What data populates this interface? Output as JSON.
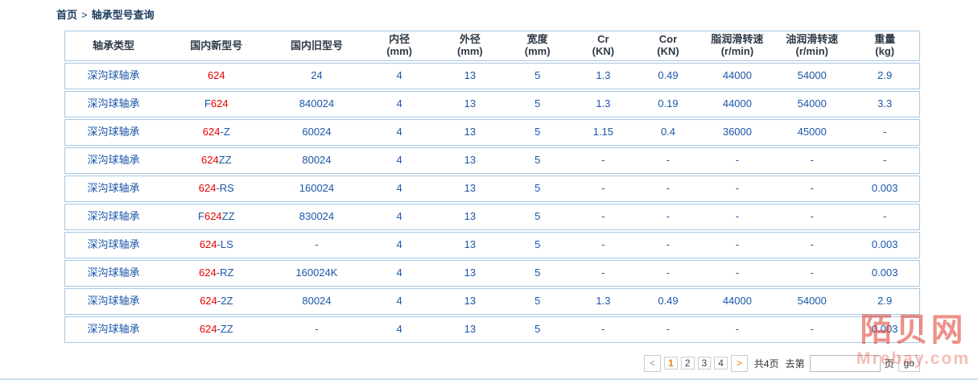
{
  "breadcrumb": {
    "home": "首页",
    "separator": ">",
    "current": "轴承型号查询"
  },
  "table": {
    "headers": [
      {
        "line1": "轴承类型",
        "line2": ""
      },
      {
        "line1": "国内新型号",
        "line2": ""
      },
      {
        "line1": "国内旧型号",
        "line2": ""
      },
      {
        "line1": "内径",
        "line2": "(mm)"
      },
      {
        "line1": "外径",
        "line2": "(mm)"
      },
      {
        "line1": "宽度",
        "line2": "(mm)"
      },
      {
        "line1": "Cr",
        "line2": "(KN)"
      },
      {
        "line1": "Cor",
        "line2": "(KN)"
      },
      {
        "line1": "脂润滑转速",
        "line2": "(r/min)"
      },
      {
        "line1": "油润滑转速",
        "line2": "(r/min)"
      },
      {
        "line1": "重量",
        "line2": "(kg)"
      }
    ],
    "rows": [
      {
        "type": "深沟球轴承",
        "model_pre": "",
        "model_hl": "624",
        "model_suf": "",
        "old_model": "24",
        "inner_mm": "4",
        "outer_mm": "13",
        "width_mm": "5",
        "cr": "1.3",
        "cor": "0.49",
        "grease_rpm": "44000",
        "oil_rpm": "54000",
        "weight": "2.9"
      },
      {
        "type": "深沟球轴承",
        "model_pre": "F",
        "model_hl": "624",
        "model_suf": "",
        "old_model": "840024",
        "inner_mm": "4",
        "outer_mm": "13",
        "width_mm": "5",
        "cr": "1.3",
        "cor": "0.19",
        "grease_rpm": "44000",
        "oil_rpm": "54000",
        "weight": "3.3"
      },
      {
        "type": "深沟球轴承",
        "model_pre": "",
        "model_hl": "624",
        "model_suf": "-Z",
        "old_model": "60024",
        "inner_mm": "4",
        "outer_mm": "13",
        "width_mm": "5",
        "cr": "1.15",
        "cor": "0.4",
        "grease_rpm": "36000",
        "oil_rpm": "45000",
        "weight": "-"
      },
      {
        "type": "深沟球轴承",
        "model_pre": "",
        "model_hl": "624",
        "model_suf": "ZZ",
        "old_model": "80024",
        "inner_mm": "4",
        "outer_mm": "13",
        "width_mm": "5",
        "cr": "-",
        "cor": "-",
        "grease_rpm": "-",
        "oil_rpm": "-",
        "weight": "-"
      },
      {
        "type": "深沟球轴承",
        "model_pre": "",
        "model_hl": "624",
        "model_suf": "-RS",
        "old_model": "160024",
        "inner_mm": "4",
        "outer_mm": "13",
        "width_mm": "5",
        "cr": "-",
        "cor": "-",
        "grease_rpm": "-",
        "oil_rpm": "-",
        "weight": "0.003"
      },
      {
        "type": "深沟球轴承",
        "model_pre": "F",
        "model_hl": "624",
        "model_suf": "ZZ",
        "old_model": "830024",
        "inner_mm": "4",
        "outer_mm": "13",
        "width_mm": "5",
        "cr": "-",
        "cor": "-",
        "grease_rpm": "-",
        "oil_rpm": "-",
        "weight": "-"
      },
      {
        "type": "深沟球轴承",
        "model_pre": "",
        "model_hl": "624",
        "model_suf": "-LS",
        "old_model": "-",
        "inner_mm": "4",
        "outer_mm": "13",
        "width_mm": "5",
        "cr": "-",
        "cor": "-",
        "grease_rpm": "-",
        "oil_rpm": "-",
        "weight": "0.003"
      },
      {
        "type": "深沟球轴承",
        "model_pre": "",
        "model_hl": "624",
        "model_suf": "-RZ",
        "old_model": "160024K",
        "inner_mm": "4",
        "outer_mm": "13",
        "width_mm": "5",
        "cr": "-",
        "cor": "-",
        "grease_rpm": "-",
        "oil_rpm": "-",
        "weight": "0.003"
      },
      {
        "type": "深沟球轴承",
        "model_pre": "",
        "model_hl": "624",
        "model_suf": "-2Z",
        "old_model": "80024",
        "inner_mm": "4",
        "outer_mm": "13",
        "width_mm": "5",
        "cr": "1.3",
        "cor": "0.49",
        "grease_rpm": "44000",
        "oil_rpm": "54000",
        "weight": "2.9"
      },
      {
        "type": "深沟球轴承",
        "model_pre": "",
        "model_hl": "624",
        "model_suf": "-ZZ",
        "old_model": "-",
        "inner_mm": "4",
        "outer_mm": "13",
        "width_mm": "5",
        "cr": "-",
        "cor": "-",
        "grease_rpm": "-",
        "oil_rpm": "-",
        "weight": "0.003"
      }
    ]
  },
  "pagination": {
    "prev_label": "<",
    "pages": [
      "1",
      "2",
      "3",
      "4"
    ],
    "current_page": "1",
    "next_label": ">",
    "total_text": "共4页",
    "goto_prefix": "去第",
    "input_value": "",
    "goto_suffix": "页",
    "go_label": "go"
  },
  "watermark": {
    "cn": "陌贝网",
    "en": "Mrebay.com"
  },
  "colors": {
    "cell_text": "#1b56a9",
    "highlight_red": "#e80000",
    "header_text": "#2e3a47",
    "table_border": "#a9c7e3",
    "pager_accent_orange": "#e8810c",
    "watermark_red": "#de3728"
  }
}
